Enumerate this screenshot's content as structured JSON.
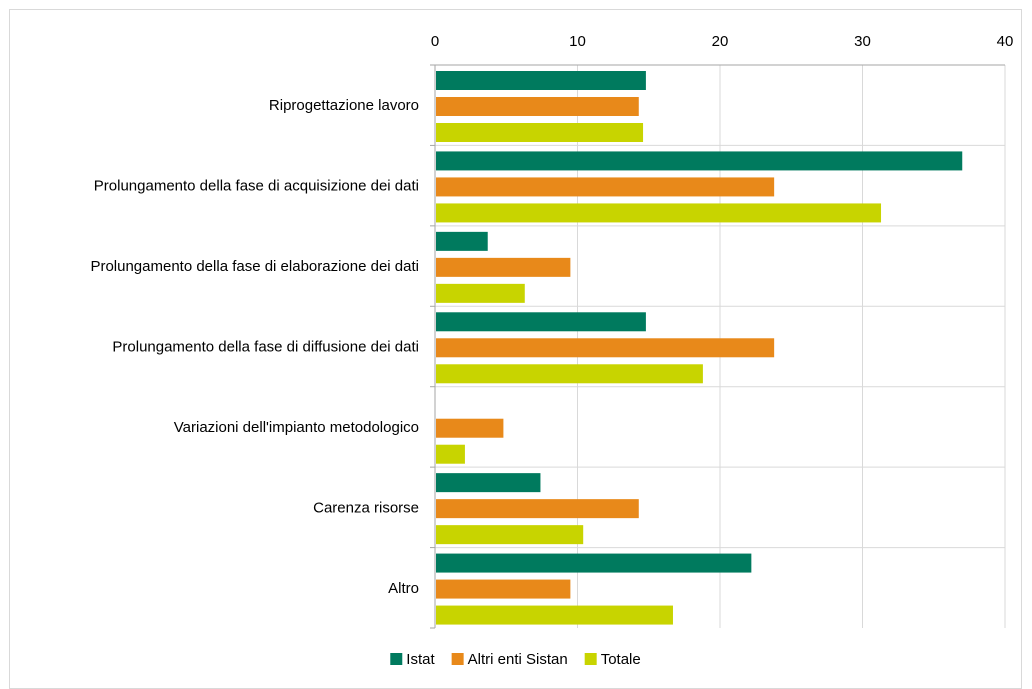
{
  "chart_data": {
    "type": "bar",
    "orientation": "horizontal",
    "categories": [
      "Riprogettazione lavoro",
      "Prolungamento della fase di acquisizione dei dati",
      "Prolungamento della fase di elaborazione dei dati",
      "Prolungamento della fase di diffusione dei dati",
      "Variazioni dell'impianto metodologico",
      "Carenza risorse",
      "Altro"
    ],
    "series": [
      {
        "name": "Istat",
        "color": "#007a5e",
        "values": [
          14.8,
          37.0,
          3.7,
          14.8,
          0,
          7.4,
          22.2
        ]
      },
      {
        "name": "Altri enti Sistan",
        "color": "#e8891a",
        "values": [
          14.3,
          23.8,
          9.5,
          23.8,
          4.8,
          14.3,
          9.5
        ]
      },
      {
        "name": "Totale",
        "color": "#c8d400",
        "values": [
          14.6,
          31.3,
          6.3,
          18.8,
          2.1,
          10.4,
          16.7
        ]
      }
    ],
    "xlim": [
      0,
      40
    ],
    "xticks": [
      0,
      10,
      20,
      30,
      40
    ],
    "x_axis_position": "top",
    "grid": true,
    "legend_position": "bottom"
  }
}
